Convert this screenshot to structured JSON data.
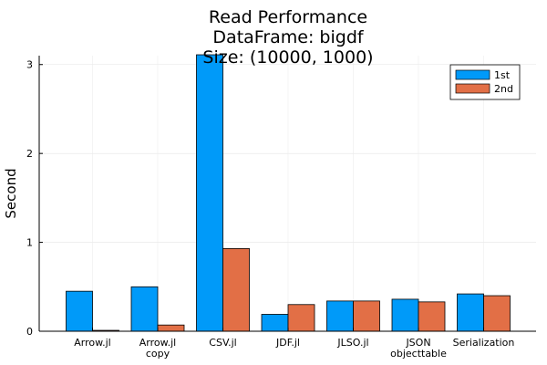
{
  "chart_data": {
    "type": "bar",
    "title_lines": [
      "Read Performance",
      "DataFrame: bigdf",
      "Size: (10000, 1000)"
    ],
    "xlabel": "",
    "ylabel": "Second",
    "ylim": [
      0,
      3.1
    ],
    "yticks": [
      0,
      1,
      2,
      3
    ],
    "grid": true,
    "legend_position": "top-right",
    "categories": [
      [
        "Arrow.jl"
      ],
      [
        "Arrow.jl",
        "copy"
      ],
      [
        "CSV.jl"
      ],
      [
        "JDF.jl"
      ],
      [
        "JLSO.jl"
      ],
      [
        "JSON",
        "objecttable"
      ],
      [
        "Serialization"
      ]
    ],
    "series": [
      {
        "name": "1st",
        "color": "#009AF9",
        "values": [
          0.45,
          0.5,
          3.11,
          0.19,
          0.34,
          0.36,
          0.42
        ]
      },
      {
        "name": "2nd",
        "color": "#E26F46",
        "values": [
          0.01,
          0.07,
          0.93,
          0.3,
          0.34,
          0.33,
          0.4
        ]
      }
    ]
  }
}
